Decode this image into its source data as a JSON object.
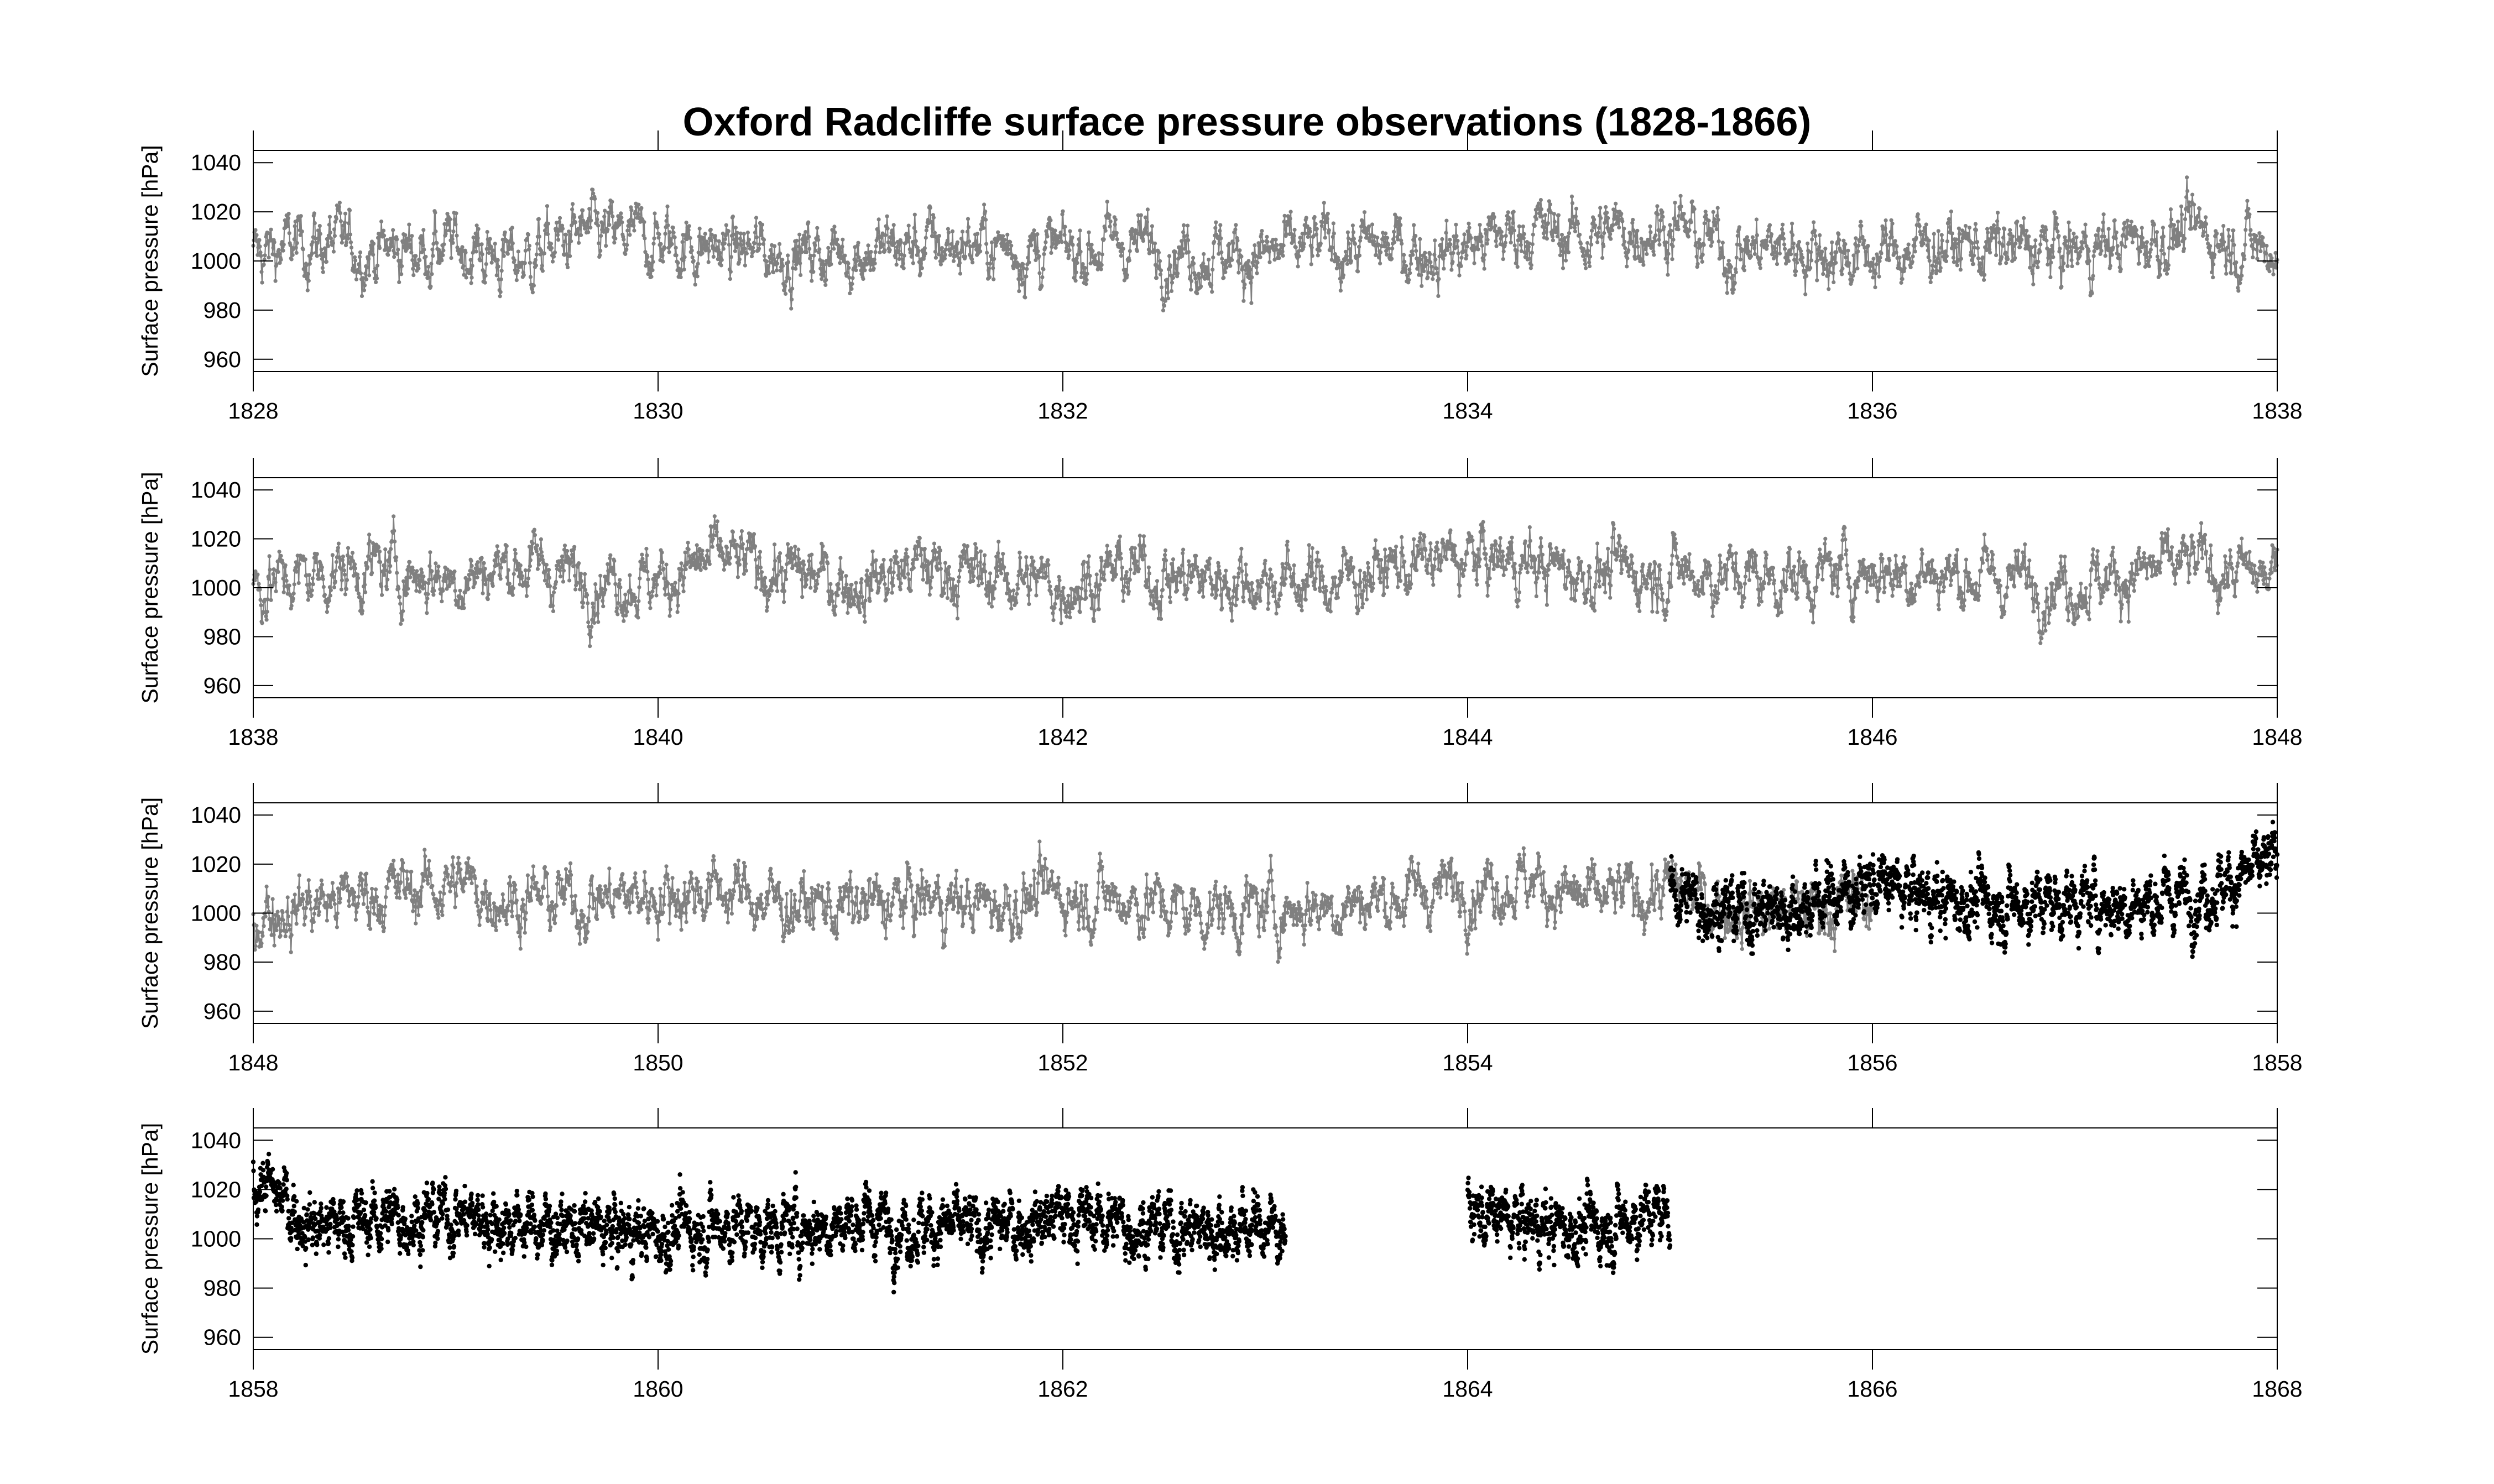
{
  "chart_data": {
    "type": "scatter",
    "title": "Oxford Radcliffe surface pressure observations (1828-1866)",
    "ylabel": "Surface pressure [hPa]",
    "ylim": [
      955,
      1045
    ],
    "yticks": [
      960,
      980,
      1000,
      1020,
      1040
    ],
    "colors": {
      "series_a": "#808080",
      "series_b": "#000000",
      "axes": "#000000"
    },
    "panels": [
      {
        "xlim": [
          1828,
          1838
        ],
        "xticks": [
          "1828",
          "1830",
          "1832",
          "1834",
          "1836",
          "1838"
        ],
        "yticks": [
          "960",
          "980",
          "1000",
          "1020",
          "1040"
        ],
        "ylabel": "Surface pressure [hPa]",
        "series": [
          {
            "color": "#808080",
            "x": [
              1828.0,
              1828.3,
              1828.6,
              1829.0,
              1829.3,
              1829.6,
              1830.0,
              1830.3,
              1830.6,
              1831.0,
              1831.3,
              1831.6,
              1832.0,
              1832.3,
              1832.6,
              1833.0,
              1833.3,
              1833.6,
              1833.9,
              1834.3,
              1834.6,
              1835.0,
              1835.3,
              1835.6,
              1836.0,
              1836.3,
              1836.6,
              1837.0,
              1837.3,
              1837.6,
              1838.0
            ],
            "y": [
              1002,
              1008,
              1004,
              1006,
              1000,
              1010,
              1008,
              1005,
              1003,
              1004,
              1006,
              1007,
              1003,
              1008,
              1004,
              1002,
              1006,
              1005,
              1004,
              1013,
              1010,
              1015,
              1004,
              1006,
              1002,
              1007,
              1005,
              1004,
              1008,
              1012,
              1004
            ]
          }
        ]
      },
      {
        "xlim": [
          1838,
          1848
        ],
        "xticks": [
          "1838",
          "1840",
          "1842",
          "1844",
          "1846",
          "1848"
        ],
        "yticks": [
          "960",
          "980",
          "1000",
          "1020",
          "1040"
        ],
        "ylabel": "Surface pressure [hPa]",
        "series": [
          {
            "color": "#808080",
            "x": [
              1838.0,
              1838.3,
              1838.6,
              1839.0,
              1839.3,
              1839.6,
              1840.0,
              1840.3,
              1840.6,
              1841.0,
              1841.3,
              1841.6,
              1842.0,
              1842.3,
              1842.6,
              1843.0,
              1843.3,
              1843.6,
              1844.0,
              1844.3,
              1844.6,
              1845.0,
              1845.3,
              1845.6,
              1846.0,
              1846.3,
              1846.6,
              1847.0,
              1847.3,
              1847.6,
              1848.0
            ],
            "y": [
              1000,
              1006,
              1008,
              1004,
              1010,
              1005,
              1003,
              1012,
              1006,
              1002,
              1009,
              1005,
              1001,
              1007,
              1004,
              1003,
              1002,
              1008,
              1012,
              1010,
              1006,
              1007,
              1005,
              1004,
              1008,
              1006,
              1004,
              1002,
              1006,
              1009,
              1003
            ]
          }
        ]
      },
      {
        "xlim": [
          1848,
          1858
        ],
        "xticks": [
          "1848",
          "1850",
          "1852",
          "1854",
          "1856",
          "1858"
        ],
        "yticks": [
          "960",
          "980",
          "1000",
          "1020",
          "1040"
        ],
        "ylabel": "Surface pressure [hPa]",
        "series": [
          {
            "color": "#808080",
            "x": [
              1848.0,
              1848.3,
              1848.6,
              1849.0,
              1849.3,
              1849.6,
              1850.0,
              1850.3,
              1850.6,
              1851.0,
              1851.3,
              1851.6,
              1852.0,
              1852.3,
              1852.6,
              1853.0,
              1853.3,
              1853.6,
              1854.0,
              1854.3,
              1854.6,
              1855.0,
              1855.3,
              1855.6,
              1856.0
            ],
            "y": [
              1000,
              1004,
              1008,
              1012,
              1006,
              1005,
              1008,
              1010,
              1004,
              1002,
              1006,
              1003,
              1008,
              1006,
              1002,
              1001,
              1004,
              1006,
              1012,
              1014,
              1004,
              1010,
              1002,
              1001,
              1006
            ]
          },
          {
            "color": "#000000",
            "x": [
              1855.0,
              1855.3,
              1855.6,
              1856.0,
              1856.3,
              1856.6,
              1857.0,
              1857.3,
              1857.6,
              1858.0
            ],
            "y": [
              1008,
              1001,
              1002,
              1012,
              1006,
              1004,
              1005,
              1004,
              1008,
              1020
            ]
          }
        ]
      },
      {
        "xlim": [
          1858,
          1868
        ],
        "xticks": [
          "1858",
          "1860",
          "1862",
          "1864",
          "1866",
          "1868"
        ],
        "yticks": [
          "960",
          "980",
          "1000",
          "1020",
          "1040"
        ],
        "ylabel": "Surface pressure [hPa]",
        "series": [
          {
            "color": "#000000",
            "x": [
              1858.0,
              1858.3,
              1858.6,
              1859.0,
              1859.3,
              1859.6,
              1860.0,
              1860.3,
              1860.6,
              1861.0,
              1861.3,
              1861.6,
              1862.0,
              1862.3,
              1862.6,
              1863.0,
              1863.1
            ],
            "y": [
              1025,
              1005,
              1008,
              1010,
              1006,
              1004,
              1002,
              1006,
              1004,
              1008,
              1006,
              1003,
              1010,
              1006,
              1004,
              1005,
              1006
            ]
          },
          {
            "color": "#000000",
            "x": [
              1864.0,
              1864.3,
              1864.6,
              1865.0
            ],
            "y": [
              1010,
              1006,
              1004,
              1012
            ]
          }
        ]
      }
    ]
  }
}
